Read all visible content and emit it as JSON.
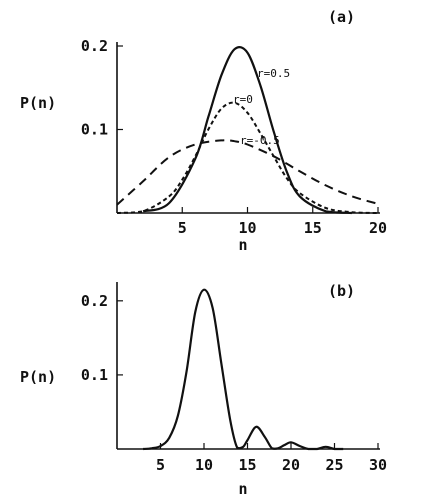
{
  "chart_data": [
    {
      "type": "line",
      "panel": "(a)",
      "xlabel": "n",
      "ylabel": "P(n)",
      "xlim": [
        0,
        20
      ],
      "ylim": [
        0,
        0.2
      ],
      "xticks": [
        "5",
        "10",
        "15",
        "20"
      ],
      "yticks": [
        "0.1",
        "0.2"
      ],
      "series": [
        {
          "name": "r=0.5",
          "style": "solid",
          "x": [
            2,
            4,
            6,
            7,
            8,
            9,
            10,
            11,
            12,
            13,
            14,
            16,
            18
          ],
          "y": [
            0.002,
            0.012,
            0.065,
            0.115,
            0.165,
            0.196,
            0.192,
            0.152,
            0.098,
            0.05,
            0.02,
            0.002,
            0.0
          ]
        },
        {
          "name": "r=0",
          "style": "dashed",
          "x": [
            0,
            2,
            4,
            5,
            6,
            7,
            8,
            9,
            10,
            11,
            12,
            13,
            14,
            16,
            18,
            20
          ],
          "y": [
            0.0,
            0.002,
            0.02,
            0.04,
            0.068,
            0.1,
            0.125,
            0.132,
            0.12,
            0.095,
            0.068,
            0.042,
            0.024,
            0.006,
            0.001,
            0.0
          ]
        },
        {
          "name": "r=-0.5",
          "style": "dashed",
          "x": [
            0,
            2,
            4,
            6,
            8,
            9,
            10,
            12,
            14,
            16,
            18,
            20
          ],
          "y": [
            0.01,
            0.038,
            0.067,
            0.082,
            0.087,
            0.086,
            0.082,
            0.068,
            0.05,
            0.033,
            0.02,
            0.011
          ]
        }
      ],
      "annotations": [
        "r=0.5",
        "r=0",
        "r=-0.5"
      ]
    },
    {
      "type": "line",
      "panel": "(b)",
      "xlabel": "n",
      "ylabel": "P(n)",
      "xlim": [
        0,
        30
      ],
      "ylim": [
        0,
        0.22
      ],
      "xticks": [
        "5",
        "10",
        "15",
        "20",
        "25",
        "30"
      ],
      "yticks": [
        "0.1",
        "0.2"
      ],
      "series": [
        {
          "style": "solid",
          "x": [
            3,
            4,
            5,
            6,
            7,
            8,
            9,
            10,
            11,
            12,
            13,
            13.8,
            14.5,
            15,
            16,
            17,
            17.8,
            18.5,
            19.2,
            20,
            21,
            22,
            23,
            24,
            25,
            26
          ],
          "y": [
            0.0,
            0.001,
            0.004,
            0.015,
            0.045,
            0.105,
            0.185,
            0.215,
            0.19,
            0.115,
            0.04,
            0.002,
            0.003,
            0.012,
            0.03,
            0.016,
            0.001,
            0.001,
            0.005,
            0.009,
            0.004,
            0.0,
            0.0,
            0.003,
            0.0,
            0.0
          ]
        }
      ]
    }
  ]
}
